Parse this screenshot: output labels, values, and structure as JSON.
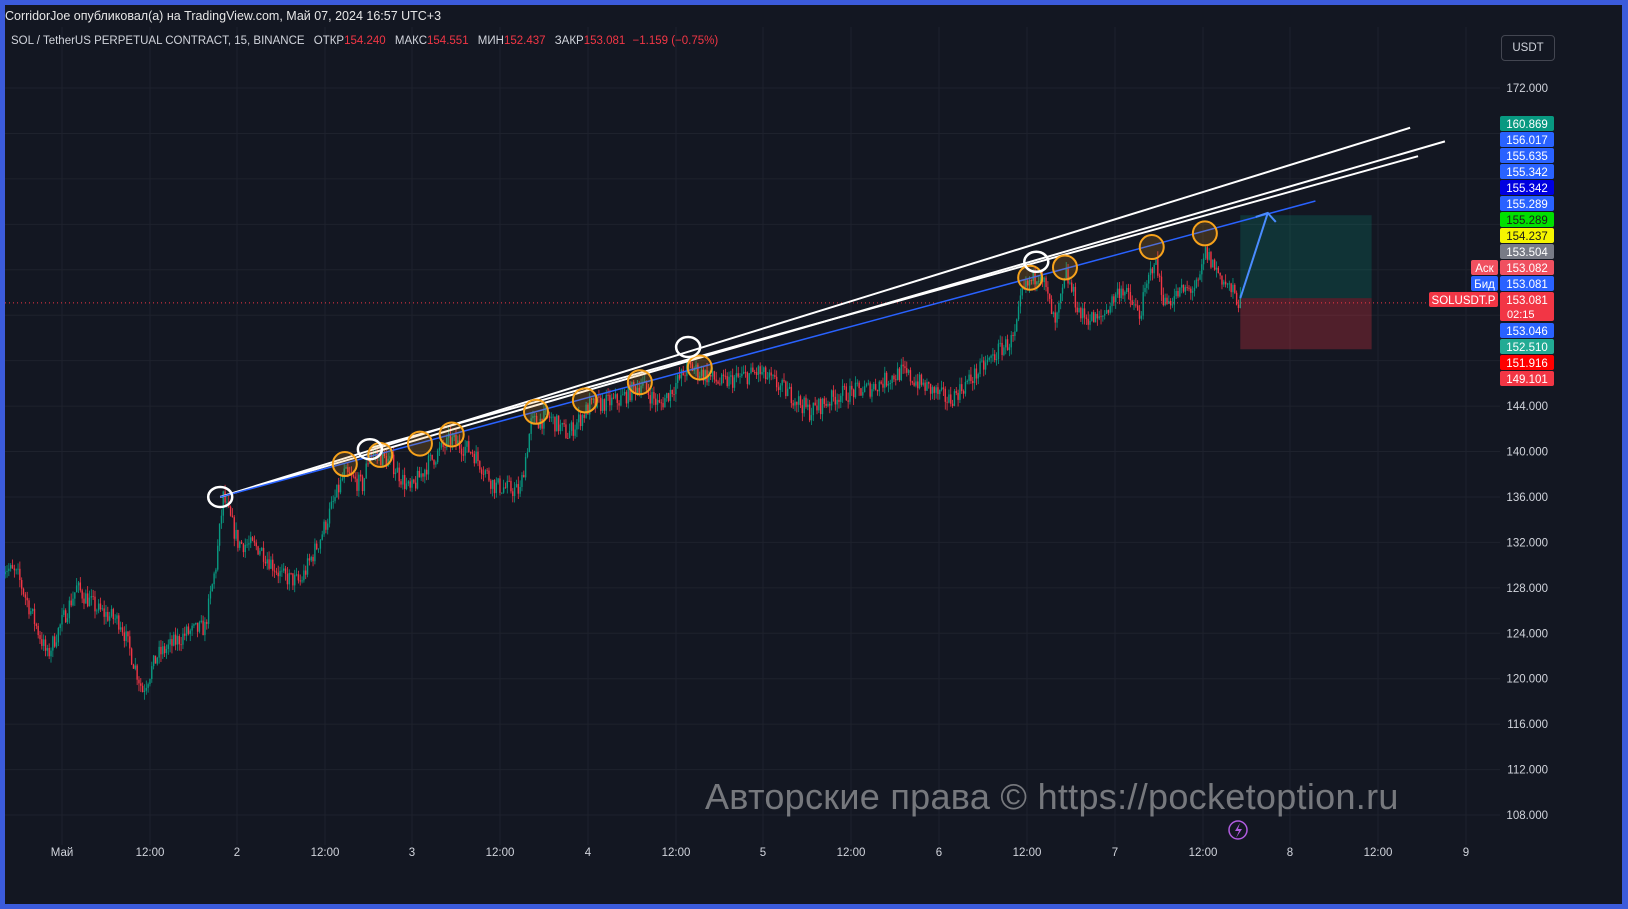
{
  "header": {
    "published": "CorridorJoe опубликовал(а) на TradingView.com, Май 07, 2024 16:57 UTC+3"
  },
  "legend": {
    "symbol": "SOL / TetherUS PERPETUAL CONTRACT, 15, BINANCE",
    "open_label": "ОТКР",
    "open": "154.240",
    "high_label": "МАКС",
    "high": "154.551",
    "low_label": "МИН",
    "low": "152.437",
    "close_label": "ЗАКР",
    "close": "153.081",
    "change": "−1.159 (−0.75%)"
  },
  "currency_button": "USDT",
  "watermark": "Авторские права © https://pocketoption.ru",
  "colors": {
    "background": "#131722",
    "up": "#089981",
    "down": "#f23645",
    "trend_white": "#ffffff",
    "trend_blue": "#2962ff",
    "circle_orange": "#f7a21b",
    "frame": "#3b5bdb"
  },
  "icons": {
    "replay": "lightning-icon"
  },
  "chart_data": {
    "type": "candlestick",
    "interval": "15",
    "grid": true,
    "ylim": [
      106,
      175
    ],
    "y_ticks": [
      "172.000",
      "144.000",
      "140.000",
      "136.000",
      "132.000",
      "128.000",
      "124.000",
      "120.000",
      "116.000",
      "112.000",
      "108.000"
    ],
    "x_ticks": [
      "Май",
      "12:00",
      "2",
      "12:00",
      "3",
      "12:00",
      "4",
      "12:00",
      "5",
      "12:00",
      "6",
      "12:00",
      "7",
      "12:00",
      "8",
      "12:00",
      "9"
    ],
    "close_path": [
      [
        "04-30 16:00",
        130
      ],
      [
        "04-30 18:00",
        129
      ],
      [
        "04-30 22:00",
        122
      ],
      [
        "05-01 02:00",
        128
      ],
      [
        "05-01 05:00",
        126
      ],
      [
        "05-01 08:00",
        125
      ],
      [
        "05-01 11:00",
        119
      ],
      [
        "05-01 13:00",
        122
      ],
      [
        "05-01 17:00",
        124
      ],
      [
        "05-01 19:30",
        124.5
      ],
      [
        "05-01 21:00",
        130
      ],
      [
        "05-01 22:00",
        136
      ],
      [
        "05-02 00:00",
        132
      ],
      [
        "05-02 03:00",
        131.5
      ],
      [
        "05-02 06:00",
        129
      ],
      [
        "05-02 08:30",
        128.5
      ],
      [
        "05-02 11:00",
        132
      ],
      [
        "05-02 14:30",
        138
      ],
      [
        "05-02 17:00",
        137
      ],
      [
        "05-02 18:00",
        140
      ],
      [
        "05-02 21:00",
        139
      ],
      [
        "05-02 23:30",
        136.5
      ],
      [
        "05-03 02:00",
        139
      ],
      [
        "05-03 05:00",
        141
      ],
      [
        "05-03 08:00",
        140
      ],
      [
        "05-03 11:00",
        137
      ],
      [
        "05-03 14:30",
        136.5
      ],
      [
        "05-03 16:00",
        142.5
      ],
      [
        "05-03 18:30",
        143
      ],
      [
        "05-03 21:00",
        141.5
      ],
      [
        "05-04 00:00",
        144
      ],
      [
        "05-04 04:00",
        144.5
      ],
      [
        "05-04 07:00",
        146
      ],
      [
        "05-04 09:30",
        144
      ],
      [
        "05-04 13:30",
        147.5
      ],
      [
        "05-04 18:00",
        146
      ],
      [
        "05-04 23:00",
        147
      ],
      [
        "05-05 03:30",
        145
      ],
      [
        "05-05 06:00",
        143.5
      ],
      [
        "05-05 10:00",
        145
      ],
      [
        "05-05 14:00",
        145.5
      ],
      [
        "05-05 18:30",
        147
      ],
      [
        "05-05 21:00",
        146
      ],
      [
        "05-06 01:00",
        144.5
      ],
      [
        "05-06 05:00",
        147
      ],
      [
        "05-06 08:00",
        149
      ],
      [
        "05-06 10:00",
        150
      ],
      [
        "05-06 11:00",
        154
      ],
      [
        "05-06 13:30",
        156
      ],
      [
        "05-06 15:30",
        151
      ],
      [
        "05-06 17:00",
        155.5
      ],
      [
        "05-06 19:00",
        152
      ],
      [
        "05-06 21:30",
        151.5
      ],
      [
        "05-07 00:30",
        154.5
      ],
      [
        "05-07 03:00",
        152
      ],
      [
        "05-07 05:00",
        157
      ],
      [
        "05-07 06:30",
        153
      ],
      [
        "05-07 08:30",
        154
      ],
      [
        "05-07 11:00",
        154.5
      ],
      [
        "05-07 12:00",
        157.5
      ],
      [
        "05-07 14:30",
        155
      ],
      [
        "05-07 16:45",
        153.081
      ]
    ],
    "trend_lines": [
      {
        "color": "white",
        "from": [
          "05-01 21:35",
          136.0
        ],
        "to": [
          "05-08 15:55",
          168.5
        ]
      },
      {
        "color": "white",
        "from": [
          "05-01 21:35",
          136.0
        ],
        "to": [
          "05-08 20:40",
          167.3
        ]
      },
      {
        "color": "white",
        "from": [
          "05-02 18:00",
          140.3
        ],
        "to": [
          "05-08 17:00",
          166.0
        ]
      },
      {
        "color": "blue",
        "from": [
          "05-01 21:35",
          136.0
        ],
        "to": [
          "05-08 03:00",
          162.05
        ]
      }
    ],
    "circles": [
      {
        "color": "orange",
        "at": [
          "05-02 14:35",
          138.9
        ]
      },
      {
        "color": "orange",
        "at": [
          "05-02 19:25",
          139.7
        ]
      },
      {
        "color": "orange",
        "at": [
          "05-03 00:50",
          140.7
        ]
      },
      {
        "color": "orange",
        "at": [
          "05-03 05:10",
          141.5
        ]
      },
      {
        "color": "orange",
        "at": [
          "05-03 16:40",
          143.5
        ]
      },
      {
        "color": "orange",
        "at": [
          "05-03 23:20",
          144.5
        ]
      },
      {
        "color": "orange",
        "at": [
          "05-04 06:50",
          146.1
        ]
      },
      {
        "color": "orange",
        "at": [
          "05-04 15:00",
          147.4
        ]
      },
      {
        "color": "orange",
        "at": [
          "05-06 12:05",
          155.3
        ]
      },
      {
        "color": "orange",
        "at": [
          "05-06 16:50",
          156.2
        ]
      },
      {
        "color": "orange",
        "at": [
          "05-07 04:40",
          158.0
        ]
      },
      {
        "color": "orange",
        "at": [
          "05-07 11:55",
          159.2
        ]
      },
      {
        "color": "white",
        "at": [
          "05-01 21:35",
          136.0
        ]
      },
      {
        "color": "white",
        "at": [
          "05-02 18:00",
          140.2
        ]
      },
      {
        "color": "white",
        "at": [
          "05-04 13:25",
          149.2
        ]
      },
      {
        "color": "white",
        "at": [
          "05-06 12:55",
          156.7
        ]
      }
    ],
    "long_position": {
      "start": "05-07 16:45",
      "end": "05-08 10:40",
      "entry": 153.5,
      "target": 160.8,
      "stop": 149.0
    },
    "arrow": {
      "from": [
        "05-07 16:45",
        153.5
      ],
      "to": [
        "05-07 20:30",
        161.0
      ]
    },
    "last_price": 153.081,
    "price_labels": [
      {
        "value": "160.869",
        "bg": "#089981",
        "fg": "#ffffff"
      },
      {
        "value": "156.017",
        "bg": "#2962ff",
        "fg": "#ffffff"
      },
      {
        "value": "155.635",
        "bg": "#2962ff",
        "fg": "#ffffff"
      },
      {
        "value": "155.342",
        "bg": "#2962ff",
        "fg": "#ffffff"
      },
      {
        "value": "155.342",
        "bg": "#0000e0",
        "fg": "#ffffff"
      },
      {
        "value": "155.289",
        "bg": "#2962ff",
        "fg": "#ffffff"
      },
      {
        "value": "155.289",
        "bg": "#00e000",
        "fg": "#1a1a1a"
      },
      {
        "value": "154.237",
        "bg": "#f5f500",
        "fg": "#1a1a1a"
      },
      {
        "value": "153.504",
        "bg": "#787b86",
        "fg": "#ffffff"
      },
      {
        "value": "153.082",
        "bg": "#f05060",
        "fg": "#ffffff",
        "tag": "Аск"
      },
      {
        "value": "153.081",
        "bg": "#2962ff",
        "fg": "#ffffff",
        "tag": "Бид"
      },
      {
        "value": "153.081",
        "bg": "#f23645",
        "fg": "#ffffff",
        "tag": "SOLUSDT.P",
        "sub": "02:15"
      },
      {
        "value": "153.046",
        "bg": "#2962ff",
        "fg": "#ffffff"
      },
      {
        "value": "152.510",
        "bg": "#22ab94",
        "fg": "#ffffff"
      },
      {
        "value": "151.916",
        "bg": "#ff0000",
        "fg": "#ffffff"
      },
      {
        "value": "149.101",
        "bg": "#f23645",
        "fg": "#ffffff"
      }
    ]
  }
}
